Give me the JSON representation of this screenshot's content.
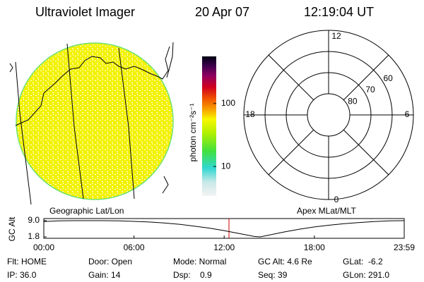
{
  "header": {
    "title": "Ultraviolet Imager",
    "date": "20 Apr 07",
    "time": "12:19:04 UT"
  },
  "colorbar": {
    "label": "photon cm⁻²s⁻¹",
    "log": true,
    "range": [
      3.4,
      560
    ],
    "ticks": [
      10,
      100
    ]
  },
  "panels": {
    "left_label": "Geographic Lat/Lon",
    "right_label": "Apex MLat/MLT"
  },
  "polar": {
    "lat_limit": 50,
    "lat_rings": [
      80,
      70,
      60
    ],
    "mlt_labels": [
      12,
      6,
      0,
      18
    ]
  },
  "altitude": {
    "ylabel": "GC Alt",
    "ylim": [
      1.8,
      9.0
    ],
    "yticks": [
      {
        "value": 9.0,
        "label": "9.0"
      },
      1.8
    ],
    "xlim": [
      0,
      23.98
    ],
    "xticks": [
      {
        "value": 0,
        "label": "00:00"
      },
      {
        "value": 6,
        "label": "06:00"
      },
      {
        "value": 12,
        "label": "12:00"
      },
      {
        "value": 18,
        "label": "18:00"
      },
      {
        "value": 23.98,
        "label": "23:59"
      }
    ],
    "current_hour": 12.32,
    "x": [
      0,
      1,
      2,
      3,
      4,
      5,
      6,
      7,
      8,
      9,
      10,
      11,
      12,
      13,
      14,
      14.4,
      15,
      16,
      17,
      18,
      19,
      20,
      21,
      22,
      23,
      23.98
    ],
    "values": [
      8.6,
      8.9,
      9.0,
      9.0,
      9.0,
      8.9,
      8.7,
      8.4,
      8.0,
      7.4,
      6.6,
      5.7,
      4.6,
      3.3,
      2.0,
      1.8,
      2.6,
      4.0,
      5.2,
      6.2,
      7.0,
      7.7,
      8.2,
      8.6,
      8.9,
      9.0
    ]
  },
  "status": [
    [
      "Flt: HOME",
      "Door: Open",
      "Mode: Normal",
      "GC Alt: 4.6 Re",
      "GLat:  -6.2"
    ],
    [
      "IP: 36.0",
      "Gain: 14",
      "Dsp:    0.9",
      "Seq: 39",
      "GLon: 291.0"
    ]
  ]
}
